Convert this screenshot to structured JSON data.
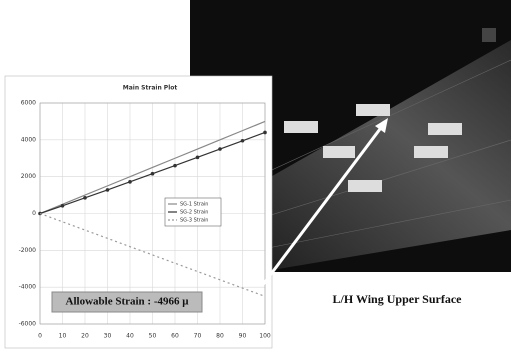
{
  "chart_data": {
    "type": "line",
    "title": "Main Strain Plot",
    "x": [
      0,
      10,
      20,
      30,
      40,
      50,
      60,
      70,
      80,
      90,
      100
    ],
    "series": [
      {
        "name": "SG-1 Strain",
        "color": "#888888",
        "values": [
          0,
          500,
          1000,
          1500,
          2000,
          2500,
          3000,
          3500,
          4000,
          4500,
          5000
        ],
        "marker": false,
        "dash": false
      },
      {
        "name": "SG-2 Strain",
        "color": "#333333",
        "values": [
          0,
          420,
          850,
          1280,
          1720,
          2160,
          2600,
          3050,
          3500,
          3950,
          4400
        ],
        "marker": true,
        "dash": false
      },
      {
        "name": "SG-3 Strain",
        "color": "#999999",
        "values": [
          0,
          -450,
          -900,
          -1350,
          -1800,
          -2250,
          -2700,
          -3150,
          -3600,
          -4050,
          -4500
        ],
        "marker": false,
        "dash": true
      }
    ],
    "xlim": [
      0,
      100
    ],
    "xticks": [
      0,
      10,
      20,
      30,
      40,
      50,
      60,
      70,
      80,
      90,
      100
    ],
    "ylim": [
      -6000,
      6000
    ],
    "yticks": [
      -6000,
      -4000,
      -2000,
      0,
      2000,
      4000,
      6000
    ],
    "grid": true,
    "annotation": "Allowable Strain : -4966 μ",
    "caption": "L/H Wing Upper Surface"
  }
}
